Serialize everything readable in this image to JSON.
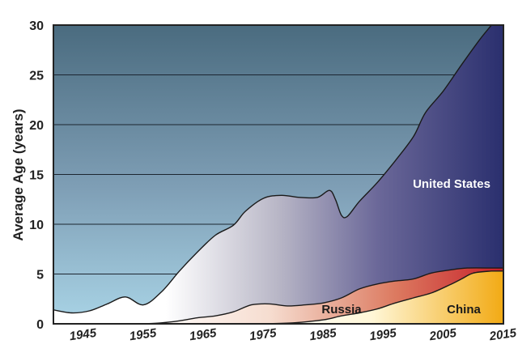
{
  "chart_data": {
    "type": "area",
    "title": "",
    "xlabel": "",
    "ylabel": "Average Age (years)",
    "xlim": [
      1940,
      2015
    ],
    "ylim": [
      0,
      30
    ],
    "x_ticks": [
      "1945",
      "1955",
      "1965",
      "1975",
      "1985",
      "1995",
      "2005",
      "2015"
    ],
    "y_ticks": [
      "0",
      "5",
      "10",
      "15",
      "20",
      "25",
      "30"
    ],
    "grid": true,
    "colors": {
      "bg_top": "#4a6b7f",
      "bg_bottom": "#a9d4e6",
      "us_left": "#ffffff",
      "us_right": "#2a2f6e",
      "russia_left": "#f6ddd0",
      "russia_right": "#c6202a",
      "china_left": "#fff7d8",
      "china_right": "#f2aa14"
    },
    "series": [
      {
        "name": "United States",
        "x": [
          1940,
          1943,
          1946,
          1949,
          1952,
          1955,
          1958,
          1961,
          1964,
          1967,
          1970,
          1972,
          1975,
          1978,
          1981,
          1984,
          1986,
          1987,
          1988,
          1989,
          1991,
          1994,
          1997,
          2000,
          2002,
          2005,
          2008,
          2011,
          2013
        ],
        "values": [
          1.4,
          1.1,
          1.3,
          2.0,
          2.7,
          1.9,
          3.2,
          5.3,
          7.2,
          8.9,
          9.9,
          11.3,
          12.6,
          12.9,
          12.7,
          12.7,
          13.4,
          12.5,
          10.9,
          10.8,
          12.3,
          14.2,
          16.4,
          18.8,
          21.2,
          23.4,
          26.0,
          28.5,
          30.0
        ]
      },
      {
        "name": "Russia",
        "x": [
          1955,
          1958,
          1961,
          1964,
          1967,
          1970,
          1973,
          1976,
          1979,
          1982,
          1985,
          1988,
          1991,
          1994,
          1997,
          2000,
          2003,
          2006,
          2009,
          2013
        ],
        "values": [
          0.0,
          0.1,
          0.3,
          0.6,
          0.8,
          1.2,
          1.9,
          2.0,
          1.8,
          1.9,
          2.1,
          2.6,
          3.5,
          4.0,
          4.3,
          4.5,
          5.1,
          5.4,
          5.6,
          5.6
        ]
      },
      {
        "name": "China",
        "x": [
          1975,
          1980,
          1985,
          1988,
          1991,
          1994,
          1997,
          2000,
          2003,
          2006,
          2008,
          2010,
          2013
        ],
        "values": [
          0.0,
          0.1,
          0.4,
          0.8,
          1.1,
          1.5,
          2.1,
          2.6,
          3.1,
          3.9,
          4.5,
          5.1,
          5.3
        ]
      }
    ]
  }
}
